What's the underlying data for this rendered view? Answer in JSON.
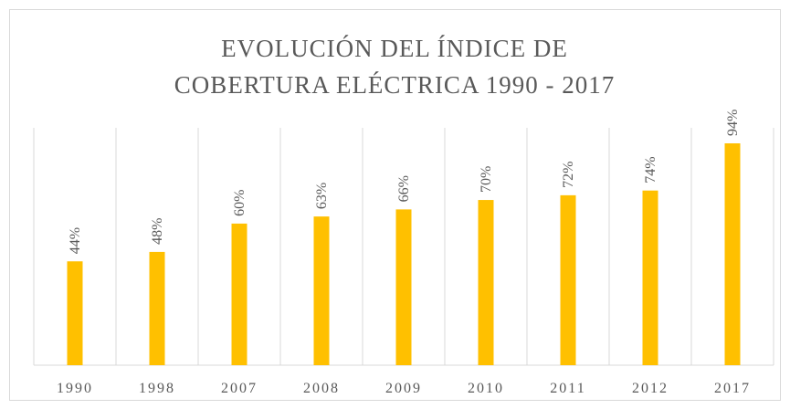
{
  "chart_data": {
    "type": "bar",
    "title": [
      "EVOLUCIÓN DEL ÍNDICE DE",
      "COBERTURA ELÉCTRICA 1990 - 2017"
    ],
    "categories": [
      "1990",
      "1998",
      "2007",
      "2008",
      "2009",
      "2010",
      "2011",
      "2012",
      "2017"
    ],
    "values": [
      44,
      48,
      60,
      63,
      66,
      70,
      72,
      74,
      94
    ],
    "value_labels": [
      "44%",
      "48%",
      "60%",
      "63%",
      "66%",
      "70%",
      "72%",
      "74%",
      "94%"
    ],
    "color": "#ffc000",
    "ylim": [
      0,
      100
    ]
  }
}
